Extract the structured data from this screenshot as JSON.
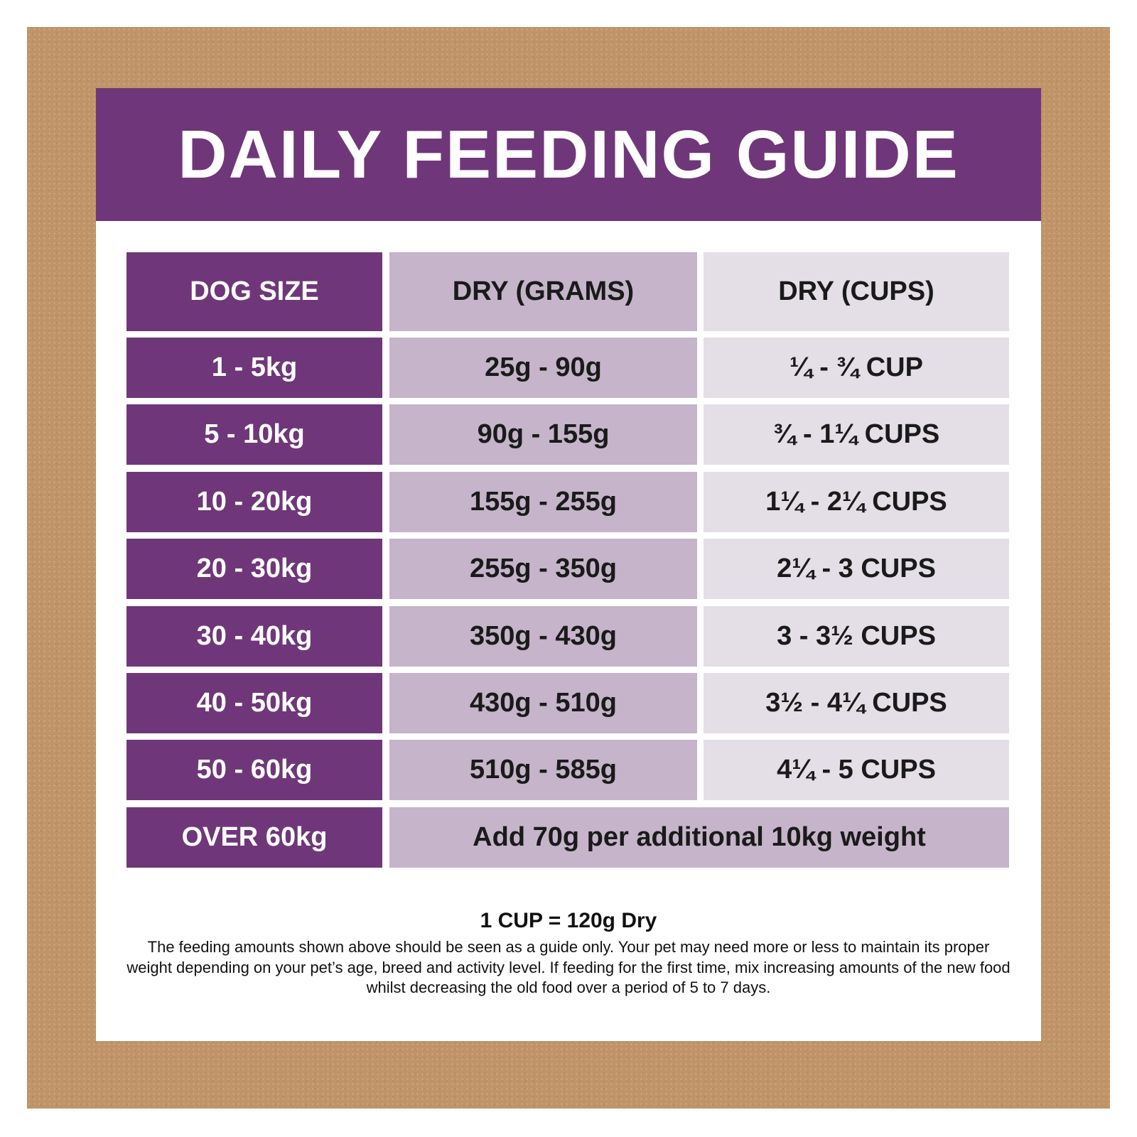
{
  "title": "DAILY FEEDING GUIDE",
  "colors": {
    "purple": "#6f3779",
    "grams_column": "#c5b4ca",
    "cups_column": "#e4dee6",
    "background": "#bf9468"
  },
  "table": {
    "headers": [
      "DOG SIZE",
      "DRY (GRAMS)",
      "DRY (CUPS)"
    ],
    "rows": [
      [
        "1 - 5kg",
        "25g - 90g",
        "¼ - ¾ CUP"
      ],
      [
        "5 - 10kg",
        "90g - 155g",
        "¾ - 1¼ CUPS"
      ],
      [
        "10 - 20kg",
        "155g - 255g",
        "1¼ - 2¼ CUPS"
      ],
      [
        "20 - 30kg",
        "255g - 350g",
        "2¼ - 3 CUPS"
      ],
      [
        "30 - 40kg",
        "350g - 430g",
        "3 - 3½ CUPS"
      ],
      [
        "40 - 50kg",
        "430g - 510g",
        "3½ - 4¼ CUPS"
      ],
      [
        "50 - 60kg",
        "510g - 585g",
        "4¼ - 5 CUPS"
      ]
    ],
    "last_row": {
      "size": "OVER 60kg",
      "note": "Add 70g per additional 10kg weight"
    }
  },
  "footer": {
    "ratio": "1 CUP = 120g Dry",
    "disclaimer": "The feeding amounts shown above should be seen as a guide only. Your pet may need more or less to maintain its proper weight depending on your pet’s age, breed and activity level. If feeding for the first time, mix increasing amounts of the new food whilst decreasing the old food over a period of 5 to 7 days."
  }
}
